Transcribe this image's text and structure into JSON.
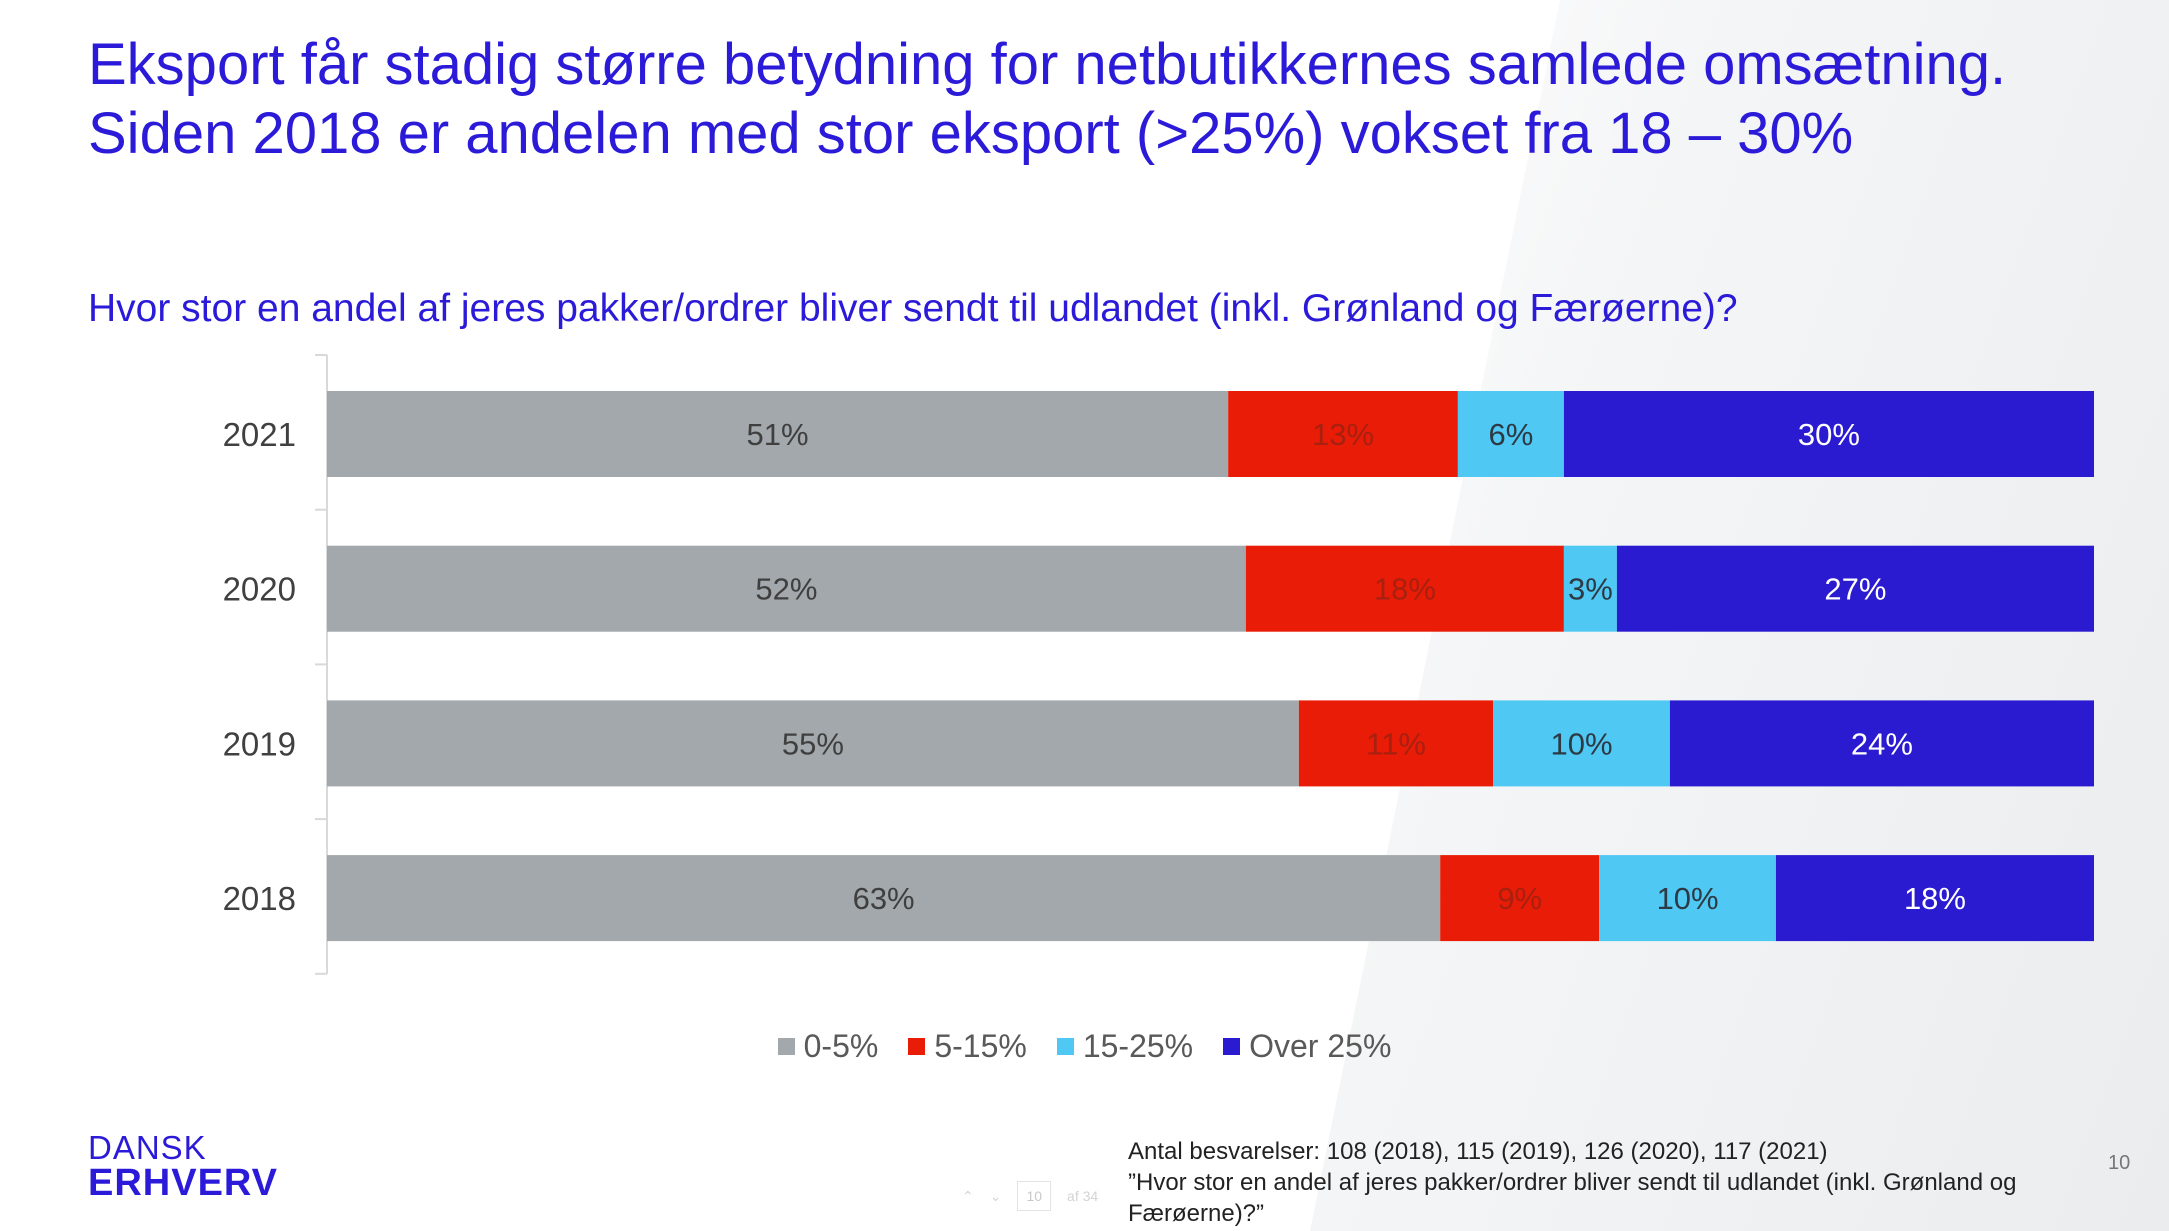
{
  "title": "Eksport får stadig større betydning for netbutikkernes samlede omsætning. Siden 2018 er andelen med stor eksport (>25%) vokset fra 18 – 30%",
  "subtitle": "Hvor stor en andel af jeres pakker/ordrer bliver sendt til udlandet (inkl. Grønland og Færøerne)?",
  "chart_data": {
    "type": "bar",
    "orientation": "horizontal",
    "stacked": true,
    "categories": [
      "2021",
      "2020",
      "2019",
      "2018"
    ],
    "series": [
      {
        "name": "0-5%",
        "values": [
          51,
          52,
          55,
          63
        ],
        "labels": [
          "51%",
          "52%",
          "55%",
          "63%"
        ],
        "color": "#a2a8ab",
        "label_color": "#3f3f3f"
      },
      {
        "name": "5-15%",
        "values": [
          13,
          18,
          11,
          9
        ],
        "labels": [
          "13%",
          "18%",
          "11%",
          "9%"
        ],
        "color": "#e81c07",
        "label_color": "#a8200f"
      },
      {
        "name": "15-25%",
        "values": [
          6,
          3,
          10,
          10
        ],
        "labels": [
          "6%",
          "3%",
          "10%",
          "10%"
        ],
        "color": "#4fc8f4",
        "label_color": "#2d3a44"
      },
      {
        "name": "Over 25%",
        "values": [
          30,
          27,
          24,
          18
        ],
        "labels": [
          "30%",
          "27%",
          "24%",
          "18%"
        ],
        "color": "#2b1bd0",
        "label_color": "#ffffff"
      }
    ],
    "xlim": [
      0,
      100
    ],
    "legend": "bottom",
    "grid": false
  },
  "logo": {
    "line1": "DANSK",
    "line2": "ERHVERV"
  },
  "footnote": {
    "line1": "Antal besvarelser: 108 (2018), 115 (2019), 126 (2020), 117 (2021)",
    "line2": "”Hvor stor en andel af jeres pakker/ordrer bliver sendt til udlandet (inkl. Grønland og Færøerne)?”"
  },
  "page_number": "10",
  "pager": {
    "page": "10",
    "of_label": "af 34"
  }
}
